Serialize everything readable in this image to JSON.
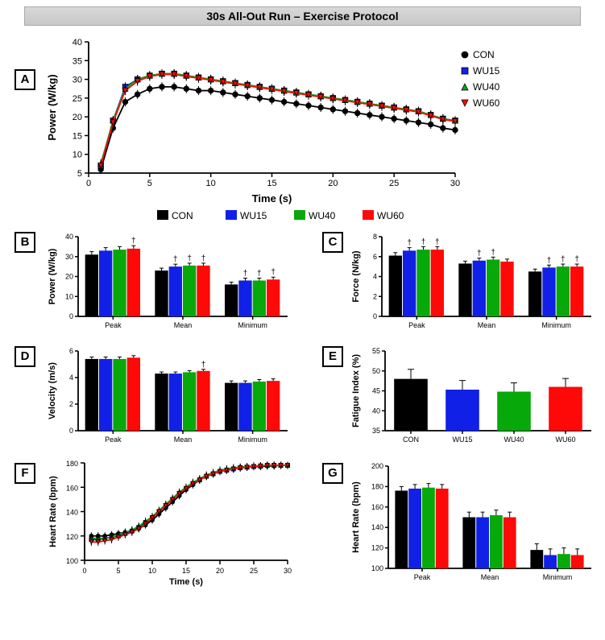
{
  "title": "30s All-Out Run – Exercise Protocol",
  "colors": {
    "CON": "#000000",
    "WU15": "#1020e6",
    "WU40": "#07a80a",
    "WU60": "#ff0808",
    "axis": "#000000",
    "title_bg": "#d0d0d0"
  },
  "series_order": [
    "CON",
    "WU15",
    "WU40",
    "WU60"
  ],
  "panelA": {
    "label": "A",
    "ylabel": "Power (W/kg)",
    "xlabel": "Time (s)",
    "xlim": [
      0,
      30
    ],
    "xtick_step": 5,
    "ylim": [
      5,
      40
    ],
    "ytick_step": 5,
    "x": [
      1,
      2,
      3,
      4,
      5,
      6,
      7,
      8,
      9,
      10,
      11,
      12,
      13,
      14,
      15,
      16,
      17,
      18,
      19,
      20,
      21,
      22,
      23,
      24,
      25,
      26,
      27,
      28,
      29,
      30
    ],
    "CON": [
      6,
      17,
      24,
      26,
      27.5,
      28,
      28,
      27.5,
      27,
      27,
      26.5,
      26,
      25.5,
      25,
      24.5,
      24,
      23.5,
      23,
      22.5,
      22,
      21.5,
      21,
      20.5,
      20,
      19.5,
      19,
      18.5,
      18,
      17,
      16.5
    ],
    "WU15": [
      7,
      19,
      28,
      30,
      31,
      31.5,
      31.5,
      31,
      30.5,
      30,
      29.5,
      29,
      28.5,
      28,
      27.5,
      27,
      26.5,
      26,
      25.5,
      25,
      24.5,
      24,
      23.5,
      23,
      22.5,
      22,
      21.5,
      20.5,
      19.5,
      19
    ],
    "WU40": [
      7.5,
      19,
      27.5,
      30,
      31,
      31.5,
      31.5,
      31,
      30.5,
      30,
      29.5,
      29,
      28.5,
      28,
      27.5,
      27,
      26.5,
      26,
      25.5,
      25,
      24.5,
      24,
      23.5,
      23,
      22.5,
      22,
      21.5,
      20.5,
      19.5,
      19
    ],
    "WU60": [
      7,
      18.5,
      27,
      29.5,
      30.8,
      31.3,
      31.3,
      30.8,
      30.3,
      29.8,
      29.3,
      28.8,
      28.3,
      27.8,
      27.3,
      26.8,
      26.3,
      25.8,
      25.3,
      24.8,
      24.3,
      23.8,
      23.3,
      22.8,
      22.3,
      21.8,
      21.3,
      20.3,
      19.3,
      18.8
    ],
    "err": 1.2,
    "legend": [
      "CON",
      "WU15",
      "WU40",
      "WU60"
    ]
  },
  "bar_legend": [
    "CON",
    "WU15",
    "WU40",
    "WU60"
  ],
  "panelB": {
    "label": "B",
    "ylabel": "Power (W/kg)",
    "ylim": [
      0,
      40
    ],
    "ytick_step": 10,
    "groups": [
      "Peak",
      "Mean",
      "Minimum"
    ],
    "CON": [
      31,
      23,
      16
    ],
    "WU15": [
      33,
      25,
      18
    ],
    "WU40": [
      33.5,
      25.5,
      18
    ],
    "WU60": [
      34,
      25.5,
      18.5
    ],
    "err": [
      1.5,
      1.2,
      1.2
    ],
    "daggers": {
      "Peak": [
        "WU60"
      ],
      "Mean": [
        "WU15",
        "WU40",
        "WU60"
      ],
      "Minimum": [
        "WU15",
        "WU40",
        "WU60"
      ]
    }
  },
  "panelC": {
    "label": "C",
    "ylabel": "Force (N/kg)",
    "ylim": [
      0,
      8
    ],
    "ytick_step": 2,
    "groups": [
      "Peak",
      "Mean",
      "Minimum"
    ],
    "CON": [
      6.1,
      5.3,
      4.5
    ],
    "WU15": [
      6.6,
      5.6,
      4.9
    ],
    "WU40": [
      6.7,
      5.7,
      5.0
    ],
    "WU60": [
      6.7,
      5.5,
      5.0
    ],
    "err": [
      0.3,
      0.25,
      0.25
    ],
    "daggers": {
      "Peak": [
        "WU15",
        "WU40",
        "WU60"
      ],
      "Mean": [
        "WU15",
        "WU40"
      ],
      "Minimum": [
        "WU15",
        "WU40",
        "WU60"
      ]
    }
  },
  "panelD": {
    "label": "D",
    "ylabel": "Velocity (m/s)",
    "ylim": [
      0,
      6
    ],
    "ytick_step": 2,
    "groups": [
      "Peak",
      "Mean",
      "Minimum"
    ],
    "CON": [
      5.4,
      4.3,
      3.6
    ],
    "WU15": [
      5.4,
      4.3,
      3.6
    ],
    "WU40": [
      5.4,
      4.4,
      3.7
    ],
    "WU60": [
      5.5,
      4.5,
      3.75
    ],
    "err": [
      0.15,
      0.12,
      0.15
    ],
    "daggers": {
      "Mean": [
        "WU60"
      ]
    }
  },
  "panelE": {
    "label": "E",
    "ylabel": "Fatigue Index (%)",
    "ylim": [
      35,
      55
    ],
    "ytick_step": 5,
    "cats": [
      "CON",
      "WU15",
      "WU40",
      "WU60"
    ],
    "vals": [
      48,
      45.3,
      44.8,
      46
    ],
    "err": [
      2.4,
      2.3,
      2.2,
      2.1
    ]
  },
  "panelF": {
    "label": "F",
    "ylabel": "Heart Rate (bpm)",
    "xlabel": "Time (s)",
    "xlim": [
      0,
      30
    ],
    "xtick_step": 5,
    "ylim": [
      100,
      180
    ],
    "ytick_step": 20,
    "x": [
      1,
      2,
      3,
      4,
      5,
      6,
      7,
      8,
      9,
      10,
      11,
      12,
      13,
      14,
      15,
      16,
      17,
      18,
      19,
      20,
      21,
      22,
      23,
      24,
      25,
      26,
      27,
      28,
      29,
      30
    ],
    "CON": [
      120,
      120,
      120,
      121,
      122,
      123,
      124,
      126,
      129,
      133,
      138,
      143,
      148,
      153,
      158,
      162,
      166,
      169,
      171,
      173,
      174,
      175,
      176,
      176.5,
      177,
      177,
      177.5,
      177.5,
      178,
      178
    ],
    "WU15": [
      117,
      117,
      118,
      119,
      120,
      122,
      124,
      127,
      131,
      135,
      140,
      145,
      150,
      155,
      159,
      163,
      166,
      169,
      171,
      173,
      174,
      175,
      176,
      176.5,
      177,
      177.5,
      178,
      178,
      178,
      178
    ],
    "WU40": [
      118,
      118,
      118,
      119,
      121,
      123,
      125,
      128,
      132,
      136,
      141,
      146,
      151,
      156,
      160,
      164,
      167,
      170,
      172,
      174,
      175,
      176,
      176.5,
      177,
      177.5,
      177.5,
      178,
      178,
      178,
      178
    ],
    "WU60": [
      115,
      115,
      116,
      117,
      119,
      121,
      123,
      126,
      130,
      135,
      140,
      145,
      150,
      155,
      159,
      163,
      166,
      169,
      171,
      173,
      174,
      175,
      176,
      176.5,
      177,
      177.5,
      178,
      178,
      178,
      178
    ],
    "err": 3
  },
  "panelG": {
    "label": "G",
    "ylabel": "Heart Rate (bpm)",
    "ylim": [
      100,
      200
    ],
    "ytick_step": 20,
    "groups": [
      "Peak",
      "Mean",
      "Minimum"
    ],
    "CON": [
      176,
      150,
      118
    ],
    "WU15": [
      178,
      150,
      113
    ],
    "WU40": [
      179,
      152,
      114
    ],
    "WU60": [
      178,
      150,
      113
    ],
    "err": [
      4,
      5,
      6
    ]
  },
  "fonts": {
    "axis_label_pt": 13,
    "tick_pt": 11,
    "title_pt": 14,
    "legend_pt": 12
  }
}
